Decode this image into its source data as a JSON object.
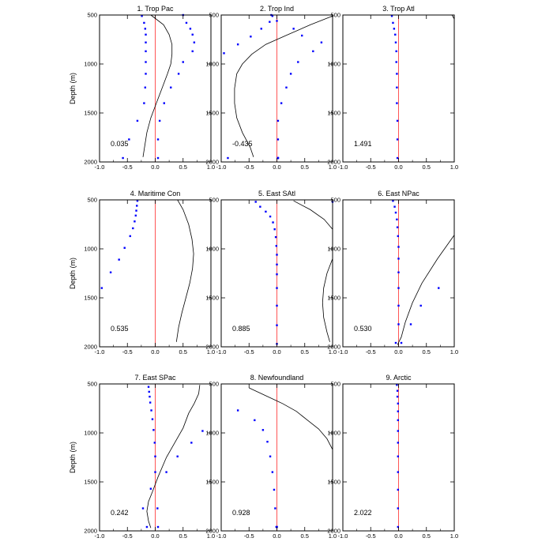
{
  "chart_data": [
    {
      "type": "line",
      "title": "1. Trop Pac",
      "annotation": "0.035",
      "xlabel": "",
      "ylabel": "Depth (m)",
      "xlim": [
        -1,
        1
      ],
      "ylim": [
        2000,
        500
      ],
      "y_inverted": true,
      "x_ticks": [
        "-1.0",
        "-0.5",
        "0.0",
        "0.5",
        "1.0"
      ],
      "y_ticks": [
        "500",
        "1000",
        "1500",
        "2000"
      ],
      "grid": false,
      "legend": false,
      "reference_line_x": 0,
      "reference_line_color": "#ff5555",
      "line_color": "#000000",
      "marker_color": "#0000ff",
      "line": {
        "x": [
          -0.08,
          0.15,
          0.25,
          0.3,
          0.3,
          0.28,
          0.22,
          0.12,
          0.02,
          -0.08,
          -0.15,
          -0.22
        ],
        "y": [
          500,
          600,
          700,
          800,
          900,
          1000,
          1100,
          1250,
          1400,
          1550,
          1700,
          1950
        ]
      },
      "points_left": {
        "x": [
          -0.24,
          -0.2,
          -0.18,
          -0.17,
          -0.17,
          -0.17,
          -0.17,
          -0.17,
          -0.18,
          -0.2,
          -0.32,
          -0.47,
          -0.58
        ],
        "y": [
          510,
          580,
          640,
          700,
          780,
          870,
          980,
          1100,
          1240,
          1400,
          1580,
          1770,
          1960
        ]
      },
      "points_right": {
        "x": [
          0.5,
          0.56,
          0.63,
          0.67,
          0.7,
          0.67,
          0.5,
          0.42,
          0.28,
          0.16,
          0.08,
          0.05,
          0.05
        ],
        "y": [
          500,
          580,
          640,
          700,
          780,
          870,
          980,
          1100,
          1240,
          1400,
          1580,
          1770,
          1960
        ]
      }
    },
    {
      "type": "line",
      "title": "2. Trop Ind",
      "annotation": "-0.435",
      "xlabel": "",
      "ylabel": "",
      "xlim": [
        -1,
        1
      ],
      "ylim": [
        2000,
        500
      ],
      "y_inverted": true,
      "x_ticks": [
        "-1.0",
        "-0.5",
        "0.0",
        "0.5",
        "1.0"
      ],
      "y_ticks": [
        "500",
        "1000",
        "1500",
        "2000"
      ],
      "grid": false,
      "legend": false,
      "reference_line_x": 0,
      "reference_line_color": "#ff5555",
      "line_color": "#000000",
      "marker_color": "#0000ff",
      "line": {
        "x": [
          1.0,
          0.6,
          0.2,
          -0.2,
          -0.45,
          -0.62,
          -0.72,
          -0.76,
          -0.76,
          -0.72,
          -0.62,
          -0.48,
          -0.42
        ],
        "y": [
          510,
          600,
          700,
          800,
          900,
          1000,
          1100,
          1250,
          1400,
          1550,
          1700,
          1850,
          1950
        ]
      },
      "points_left": {
        "x": [
          -0.08,
          -0.13,
          -0.28,
          -0.47,
          -0.7,
          -0.95,
          -0.88
        ],
        "y": [
          510,
          570,
          640,
          720,
          800,
          890,
          1960
        ]
      },
      "points_right": {
        "x": [
          -0.1,
          0.0,
          0.3,
          0.45,
          0.8,
          0.65,
          0.38,
          0.25,
          0.17,
          0.08,
          0.02,
          0.02,
          0.02,
          0.02,
          0.02,
          0.02
        ],
        "y": [
          500,
          560,
          640,
          710,
          780,
          870,
          980,
          1100,
          1240,
          1400,
          1580,
          1770,
          1960,
          1960,
          1960,
          1960
        ]
      }
    },
    {
      "type": "line",
      "title": "3. Trop Atl",
      "annotation": "1.491",
      "xlabel": "",
      "ylabel": "",
      "xlim": [
        -1,
        1
      ],
      "ylim": [
        2000,
        500
      ],
      "y_inverted": true,
      "x_ticks": [
        "-1.0",
        "-0.5",
        "0.0",
        "0.5",
        "1.0"
      ],
      "y_ticks": [
        "500",
        "1000",
        "1500",
        "2000"
      ],
      "grid": false,
      "legend": false,
      "reference_line_x": 0,
      "reference_line_color": "#ff5555",
      "line_color": "#000000",
      "marker_color": "#0000ff",
      "line": {
        "x": [
          0.96,
          1.0
        ],
        "y": [
          500,
          540
        ]
      },
      "points_left": {
        "x": [
          -0.12,
          -0.1,
          -0.08,
          -0.06,
          -0.05,
          -0.04,
          -0.04,
          -0.03,
          -0.03,
          -0.03,
          -0.02,
          -0.02,
          -0.02
        ],
        "y": [
          510,
          580,
          640,
          700,
          780,
          870,
          980,
          1100,
          1240,
          1400,
          1580,
          1770,
          1960
        ]
      },
      "points_right": {
        "x": [],
        "y": []
      }
    },
    {
      "type": "line",
      "title": "4. Maritime Con",
      "annotation": "0.535",
      "xlabel": "",
      "ylabel": "Depth (m)",
      "xlim": [
        -1,
        1
      ],
      "ylim": [
        2000,
        500
      ],
      "y_inverted": true,
      "x_ticks": [
        "-1.0",
        "-0.5",
        "0.0",
        "0.5",
        "1.0"
      ],
      "y_ticks": [
        "500",
        "1000",
        "1500",
        "2000"
      ],
      "grid": false,
      "legend": false,
      "reference_line_x": 0,
      "reference_line_color": "#ff5555",
      "line_color": "#000000",
      "marker_color": "#0000ff",
      "line": {
        "x": [
          0.4,
          0.5,
          0.6,
          0.66,
          0.69,
          0.67,
          0.62,
          0.55,
          0.48,
          0.42,
          0.38
        ],
        "y": [
          500,
          600,
          750,
          900,
          1050,
          1200,
          1350,
          1500,
          1650,
          1800,
          1950
        ]
      },
      "points_left": {
        "x": [
          -0.32,
          -0.33,
          -0.34,
          -0.35,
          -0.37,
          -0.4,
          -0.45,
          -0.55,
          -0.65,
          -0.8,
          -0.96
        ],
        "y": [
          510,
          560,
          610,
          660,
          720,
          790,
          870,
          990,
          1110,
          1240,
          1400
        ]
      },
      "points_right": {
        "x": [],
        "y": []
      }
    },
    {
      "type": "line",
      "title": "5. East SAtl",
      "annotation": "0.885",
      "xlabel": "",
      "ylabel": "",
      "xlim": [
        -1,
        1
      ],
      "ylim": [
        2000,
        500
      ],
      "y_inverted": true,
      "x_ticks": [
        "-1.0",
        "-0.5",
        "0.0",
        "0.5",
        "1.0"
      ],
      "y_ticks": [
        "500",
        "1000",
        "1500",
        "2000"
      ],
      "grid": false,
      "legend": false,
      "reference_line_x": 0,
      "reference_line_color": "#ff5555",
      "line_color": "#000000",
      "marker_color": "#0000ff",
      "line": {
        "x": [
          0.3,
          0.6,
          0.85,
          1.0,
          null,
          1.0,
          0.9,
          0.84,
          0.82,
          0.84,
          0.9,
          0.95
        ],
        "y": [
          510,
          600,
          700,
          800,
          null,
          1100,
          1250,
          1400,
          1550,
          1700,
          1850,
          1950
        ]
      },
      "points_left": {
        "x": [
          -0.38,
          -0.3,
          -0.2,
          -0.12,
          -0.07,
          -0.04,
          -0.02,
          -0.01,
          0.0,
          0.0,
          0.0,
          0.0,
          0.0,
          0.0,
          0.0
        ],
        "y": [
          520,
          570,
          620,
          670,
          730,
          800,
          880,
          970,
          1060,
          1160,
          1260,
          1400,
          1580,
          1780,
          1970
        ]
      },
      "points_right": {
        "x": [
          1.0
        ],
        "y": [
          520
        ]
      }
    },
    {
      "type": "line",
      "title": "6. East NPac",
      "annotation": "0.530",
      "xlabel": "",
      "ylabel": "",
      "xlim": [
        -1,
        1
      ],
      "ylim": [
        2000,
        500
      ],
      "y_inverted": true,
      "x_ticks": [
        "-1.0",
        "-0.5",
        "0.0",
        "0.5",
        "1.0"
      ],
      "y_ticks": [
        "500",
        "1000",
        "1500",
        "2000"
      ],
      "grid": false,
      "legend": false,
      "reference_line_x": 0,
      "reference_line_color": "#ff5555",
      "line_color": "#000000",
      "marker_color": "#0000ff",
      "line": {
        "x": [
          1.0,
          0.7,
          0.42,
          0.25,
          0.12,
          0.05,
          -0.02
        ],
        "y": [
          860,
          1100,
          1350,
          1550,
          1750,
          1900,
          1980
        ]
      },
      "points_left": {
        "x": [
          -0.1,
          -0.07,
          -0.05,
          -0.03,
          -0.02,
          -0.01,
          0.0,
          0.0,
          0.0,
          0.0,
          0.0,
          0.0,
          -0.05
        ],
        "y": [
          510,
          570,
          630,
          700,
          780,
          870,
          980,
          1100,
          1240,
          1400,
          1580,
          1770,
          1960
        ]
      },
      "points_right": {
        "x": [
          0.72,
          0.4,
          0.22,
          0.05
        ],
        "y": [
          1400,
          1580,
          1770,
          1960
        ]
      }
    },
    {
      "type": "line",
      "title": "7. East SPac",
      "annotation": "0.242",
      "xlabel": "",
      "ylabel": "Depth (m)",
      "xlim": [
        -1,
        1
      ],
      "ylim": [
        2000,
        500
      ],
      "y_inverted": true,
      "x_ticks": [
        "-1.0",
        "-0.5",
        "0.0",
        "0.5",
        "1.0"
      ],
      "y_ticks": [
        "500",
        "1000",
        "1500",
        "2000"
      ],
      "grid": false,
      "legend": false,
      "reference_line_x": 0,
      "reference_line_color": "#ff5555",
      "line_color": "#000000",
      "marker_color": "#0000ff",
      "line": {
        "x": [
          0.8,
          0.78,
          0.7,
          0.6,
          0.5,
          0.35,
          0.2,
          0.05,
          -0.05,
          -0.12,
          -0.15,
          -0.12,
          -0.08
        ],
        "y": [
          510,
          600,
          700,
          800,
          950,
          1100,
          1250,
          1450,
          1600,
          1700,
          1800,
          1900,
          1970
        ]
      },
      "points_left": {
        "x": [
          -0.12,
          -0.11,
          -0.1,
          -0.09,
          -0.07,
          -0.05,
          -0.03,
          -0.01,
          0.0,
          0.0,
          -0.08,
          -0.22,
          -0.15
        ],
        "y": [
          530,
          580,
          630,
          690,
          770,
          860,
          970,
          1100,
          1240,
          1400,
          1570,
          1770,
          1960
        ]
      },
      "points_right": {
        "x": [
          0.85,
          0.65,
          0.4,
          0.2,
          0.04,
          0.05
        ],
        "y": [
          980,
          1100,
          1240,
          1400,
          1770,
          1960
        ]
      }
    },
    {
      "type": "line",
      "title": "8. Newfoundland",
      "annotation": "0.928",
      "xlabel": "",
      "ylabel": "",
      "xlim": [
        -1,
        1
      ],
      "ylim": [
        2000,
        500
      ],
      "y_inverted": true,
      "x_ticks": [
        "-1.0",
        "-0.5",
        "0.0",
        "0.5",
        "1.0"
      ],
      "y_ticks": [
        "500",
        "1000",
        "1500",
        "2000"
      ],
      "grid": false,
      "legend": false,
      "reference_line_x": 0,
      "reference_line_color": "#ff5555",
      "line_color": "#000000",
      "marker_color": "#0000ff",
      "line": {
        "x": [
          -0.5,
          -0.2,
          0.1,
          0.35,
          0.55,
          0.75,
          0.9,
          1.0
        ],
        "y": [
          540,
          620,
          700,
          780,
          870,
          960,
          1060,
          1170
        ]
      },
      "points_left": {
        "x": [
          -0.7,
          -0.4,
          -0.25,
          -0.17,
          -0.12,
          -0.08,
          -0.05,
          -0.03,
          -0.01,
          0.0,
          0.0
        ],
        "y": [
          770,
          870,
          970,
          1090,
          1240,
          1400,
          1580,
          1770,
          1960,
          1960,
          1960
        ]
      },
      "points_right": {
        "x": [],
        "y": []
      }
    },
    {
      "type": "line",
      "title": "9. Arctic",
      "annotation": "2.022",
      "xlabel": "",
      "ylabel": "",
      "xlim": [
        -1,
        1
      ],
      "ylim": [
        2000,
        500
      ],
      "y_inverted": true,
      "x_ticks": [
        "-1.0",
        "-0.5",
        "0.0",
        "0.5",
        "1.0"
      ],
      "y_ticks": [
        "500",
        "1000",
        "1500",
        "2000"
      ],
      "grid": false,
      "legend": false,
      "reference_line_x": 0,
      "reference_line_color": "#ff5555",
      "line_color": "#000000",
      "marker_color": "#0000ff",
      "line": {
        "x": [],
        "y": []
      },
      "points_left": {
        "x": [
          -0.03,
          -0.02,
          -0.02,
          -0.01,
          -0.01,
          -0.01,
          -0.01,
          -0.01,
          -0.01,
          -0.01,
          -0.01,
          -0.01,
          -0.01
        ],
        "y": [
          510,
          570,
          630,
          700,
          780,
          870,
          980,
          1100,
          1240,
          1400,
          1580,
          1770,
          1960
        ]
      },
      "points_right": {
        "x": [],
        "y": []
      }
    }
  ]
}
